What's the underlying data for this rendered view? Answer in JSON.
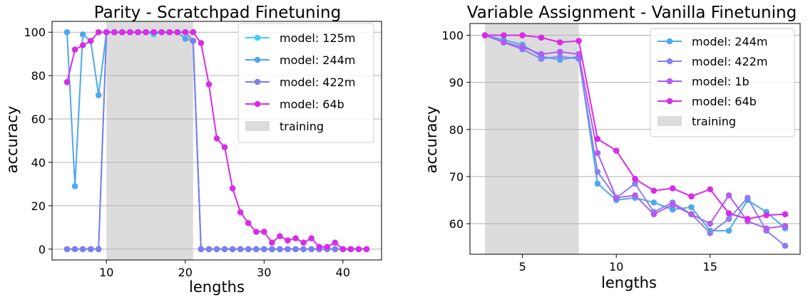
{
  "chart_data": [
    {
      "type": "line",
      "title": "Parity - Scratchpad Finetuning",
      "xlabel": "lengths",
      "ylabel": "accuracy",
      "xlim": [
        3.1,
        44.9
      ],
      "ylim": [
        -5,
        105
      ],
      "xticks": [
        10,
        20,
        30,
        40
      ],
      "yticks": [
        0,
        20,
        40,
        60,
        80,
        100
      ],
      "grid": "horizontal",
      "legend_position": "top-right",
      "training_region": [
        10,
        21
      ],
      "training_label": "training",
      "x": [
        5,
        6,
        7,
        8,
        9,
        10,
        11,
        12,
        13,
        14,
        15,
        16,
        17,
        18,
        19,
        20,
        21,
        22,
        23,
        24,
        25,
        26,
        27,
        28,
        29,
        30,
        31,
        32,
        33,
        34,
        35,
        36,
        37,
        38,
        39,
        40,
        41,
        42,
        43
      ],
      "series": [
        {
          "name": "model: 125m",
          "color": "#40d0f8",
          "values": [
            0,
            0,
            0,
            0,
            0,
            100,
            100,
            100,
            100,
            100,
            100,
            99,
            100,
            100,
            100,
            97,
            96,
            0,
            0,
            0,
            0,
            0,
            0,
            0,
            0,
            0,
            0,
            0,
            0,
            0,
            0,
            0,
            0,
            0,
            0,
            0,
            0,
            0,
            0
          ]
        },
        {
          "name": "model: 244m",
          "color": "#4fa8ec",
          "values": [
            100,
            29,
            99,
            96,
            71,
            100,
            100,
            100,
            100,
            100,
            100,
            100,
            100,
            100,
            100,
            97,
            96,
            0,
            0,
            0,
            0,
            0,
            0,
            0,
            0,
            0,
            0,
            0,
            0,
            0,
            0,
            0,
            0,
            0,
            0,
            0,
            0,
            0,
            0
          ]
        },
        {
          "name": "model: 422m",
          "color": "#7b7ff0",
          "values": [
            0,
            0,
            0,
            0,
            0,
            100,
            100,
            100,
            100,
            100,
            100,
            100,
            100,
            100,
            100,
            100,
            96,
            0,
            0,
            0,
            0,
            0,
            0,
            0,
            0,
            0,
            0,
            0,
            0,
            0,
            0,
            0,
            0,
            0,
            0,
            0,
            0,
            0,
            0
          ]
        },
        {
          "name": "model: 64b",
          "color": "#d82ce8",
          "values": [
            77,
            92,
            94,
            96,
            100,
            100,
            100,
            100,
            100,
            100,
            100,
            100,
            100,
            100,
            100,
            100,
            100,
            95,
            76,
            51,
            47,
            28,
            17,
            12,
            8,
            8,
            3,
            6,
            4,
            5,
            3,
            5,
            1,
            1,
            3,
            0,
            0,
            0,
            0
          ]
        }
      ]
    },
    {
      "type": "line",
      "title": "Variable Assignment - Vanilla Finetuning",
      "xlabel": "lengths",
      "ylabel": "accuracy",
      "xlim": [
        2.2,
        19.8
      ],
      "ylim": [
        53.5,
        102.5
      ],
      "xticks": [
        5,
        10,
        15
      ],
      "yticks": [
        60,
        70,
        80,
        90,
        100
      ],
      "grid": "horizontal",
      "legend_position": "top-right",
      "training_region": [
        3,
        8
      ],
      "training_label": "training",
      "x": [
        3,
        4,
        5,
        6,
        7,
        8,
        9,
        10,
        11,
        12,
        13,
        14,
        15,
        16,
        17,
        18,
        19
      ],
      "series": [
        {
          "name": "model: 244m",
          "color": "#4fa8ec",
          "values": [
            100,
            99,
            98,
            95.5,
            94.8,
            95.5,
            68.5,
            65,
            65.5,
            64.5,
            63,
            63.5,
            58.5,
            58.5,
            65,
            62.5,
            59
          ]
        },
        {
          "name": "model: 422m",
          "color": "#8683ef",
          "values": [
            100,
            98.5,
            97,
            95,
            95.5,
            95,
            71,
            65.5,
            68.5,
            62.5,
            64.5,
            62,
            58,
            61,
            65.5,
            58.5,
            55.3
          ]
        },
        {
          "name": "model: 1b",
          "color": "#b25cf0",
          "values": [
            100,
            98.5,
            97.5,
            96,
            96.5,
            96,
            75,
            65.5,
            66,
            62,
            64,
            62,
            60,
            66,
            60.5,
            59,
            59.5
          ]
        },
        {
          "name": "model: 64b",
          "color": "#d82ce8",
          "values": [
            100,
            100,
            100,
            99.5,
            98.5,
            98.8,
            78,
            75.5,
            69.5,
            67,
            67.5,
            65.8,
            67.3,
            62.2,
            61,
            61.8,
            62
          ]
        }
      ]
    }
  ]
}
